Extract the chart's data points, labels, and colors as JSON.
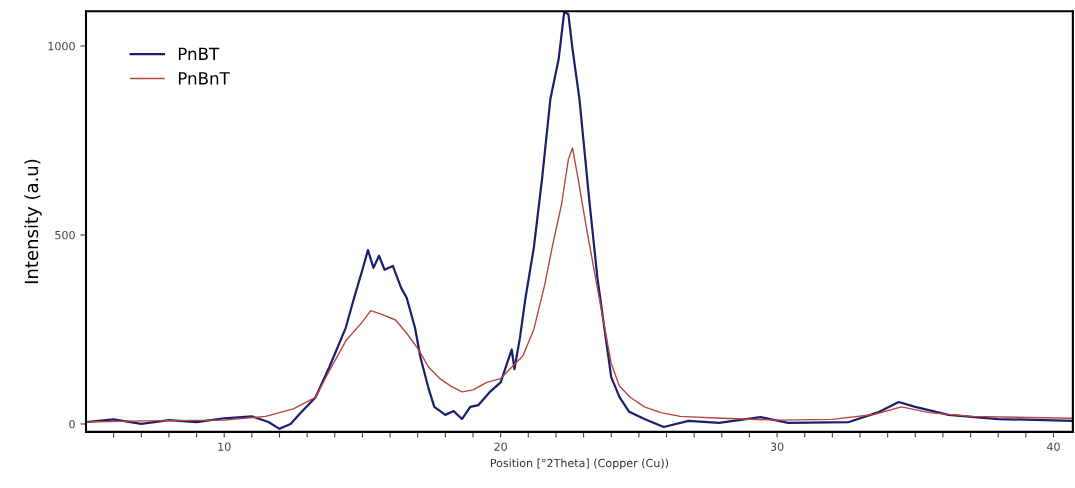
{
  "chart_data": {
    "type": "line",
    "xlabel": "Position [°2Theta] (Copper (Cu))",
    "ylabel": "Intensity (a.u)",
    "xlim": [
      5.0,
      40.7
    ],
    "ylim": [
      -21,
      1092
    ],
    "xticks": [
      {
        "value": 6,
        "label": null
      },
      {
        "value": 7,
        "label": null
      },
      {
        "value": 8,
        "label": null
      },
      {
        "value": 9,
        "label": null
      },
      10,
      {
        "value": 11,
        "label": null
      },
      {
        "value": 12,
        "label": null
      },
      {
        "value": 13,
        "label": null
      },
      {
        "value": 14,
        "label": null
      },
      {
        "value": 15,
        "label": null
      },
      {
        "value": 16,
        "label": null
      },
      {
        "value": 17,
        "label": null
      },
      {
        "value": 18,
        "label": null
      },
      {
        "value": 19,
        "label": null
      },
      20,
      {
        "value": 21,
        "label": null
      },
      {
        "value": 22,
        "label": null
      },
      {
        "value": 23,
        "label": null
      },
      {
        "value": 24,
        "label": null
      },
      {
        "value": 25,
        "label": null
      },
      {
        "value": 26,
        "label": null
      },
      {
        "value": 27,
        "label": null
      },
      {
        "value": 28,
        "label": null
      },
      {
        "value": 29,
        "label": null
      },
      30,
      {
        "value": 31,
        "label": null
      },
      {
        "value": 32,
        "label": null
      },
      {
        "value": 33,
        "label": null
      },
      {
        "value": 34,
        "label": null
      },
      {
        "value": 35,
        "label": null
      },
      {
        "value": 36,
        "label": null
      },
      {
        "value": 37,
        "label": null
      },
      {
        "value": 38,
        "label": null
      },
      {
        "value": 39,
        "label": null
      },
      40
    ],
    "yticks": [
      0,
      500,
      1000
    ],
    "grid": false,
    "legend": "top left",
    "series": [
      {
        "name": "PnBT",
        "color": "#1a1f6e",
        "x": [
          5.0,
          6,
          7,
          8,
          9,
          10,
          11,
          11.6,
          12.0,
          12.4,
          12.7,
          13.3,
          13.8,
          14.4,
          14.7,
          15.0,
          15.2,
          15.4,
          15.6,
          15.8,
          16.1,
          16.4,
          16.6,
          16.9,
          17.1,
          17.4,
          17.6,
          18.0,
          18.3,
          18.6,
          18.9,
          19.2,
          19.6,
          20.0,
          20.4,
          20.5,
          20.7,
          20.9,
          21.2,
          21.5,
          21.8,
          22.1,
          22.3,
          22.45,
          22.6,
          22.85,
          23.2,
          23.5,
          23.75,
          24.0,
          24.3,
          24.65,
          25.2,
          25.9,
          26.8,
          27.9,
          29.4,
          30.4,
          32.6,
          33.7,
          34.4,
          35.0,
          36.2,
          38.0,
          40.7
        ],
        "values": [
          5,
          12,
          0,
          10,
          5,
          15,
          20,
          5,
          -13,
          0,
          24,
          70,
          150,
          255,
          334,
          408,
          460,
          413,
          445,
          408,
          418,
          360,
          334,
          255,
          176,
          92,
          45,
          24,
          34,
          13,
          45,
          50,
          84,
          110,
          197,
          145,
          229,
          334,
          466,
          650,
          860,
          966,
          1090,
          1084,
          992,
          860,
          597,
          387,
          255,
          124,
          71,
          32,
          13,
          -8,
          8,
          3,
          18,
          3,
          5,
          32,
          58,
          45,
          24,
          13,
          8
        ]
      },
      {
        "name": "PnBnT",
        "color": "#b5473f",
        "x": [
          5.0,
          7,
          10,
          11.5,
          12.5,
          13.3,
          13.8,
          14.4,
          15.0,
          15.3,
          15.7,
          16.2,
          16.6,
          17.0,
          17.4,
          17.8,
          18.2,
          18.6,
          19.0,
          19.5,
          20.0,
          20.4,
          20.8,
          21.2,
          21.6,
          21.9,
          22.2,
          22.45,
          22.6,
          22.8,
          23.1,
          23.4,
          23.7,
          24.0,
          24.3,
          24.7,
          25.2,
          25.8,
          26.5,
          28,
          30,
          32,
          33.5,
          34.5,
          35.5,
          37,
          40.7
        ],
        "values": [
          5,
          8,
          10,
          20,
          40,
          70,
          140,
          220,
          270,
          300,
          290,
          275,
          240,
          200,
          150,
          120,
          100,
          85,
          90,
          110,
          120,
          150,
          180,
          250,
          370,
          480,
          580,
          700,
          730,
          650,
          520,
          400,
          280,
          160,
          100,
          70,
          45,
          30,
          20,
          15,
          10,
          12,
          25,
          45,
          30,
          20,
          15
        ]
      }
    ]
  }
}
